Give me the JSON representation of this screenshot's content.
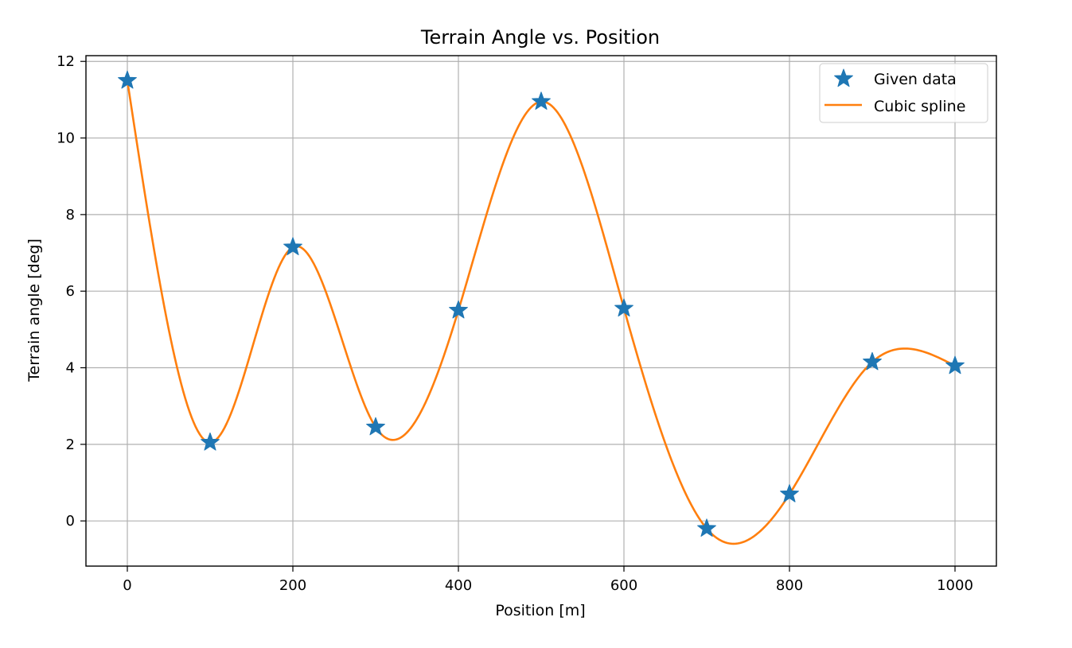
{
  "chart_data": {
    "type": "line",
    "title": "Terrain Angle vs. Position",
    "xlabel": "Position [m]",
    "ylabel": "Terrain angle [deg]",
    "xlim": [
      -50,
      1050
    ],
    "ylim": [
      -1.18,
      12.15
    ],
    "xticks": [
      0,
      200,
      400,
      600,
      800,
      1000
    ],
    "yticks": [
      0,
      2,
      4,
      6,
      8,
      10,
      12
    ],
    "grid": true,
    "legend_position": "upper right",
    "series": [
      {
        "name": "Given data",
        "style": "markers",
        "marker": "star",
        "color": "#1f77b4",
        "x": [
          0,
          100,
          200,
          300,
          400,
          500,
          600,
          700,
          800,
          900,
          1000
        ],
        "y": [
          11.5,
          2.05,
          7.15,
          2.45,
          5.5,
          10.95,
          5.55,
          -0.2,
          0.7,
          4.15,
          4.05
        ]
      },
      {
        "name": "Cubic spline",
        "style": "line",
        "color": "#ff7f0e",
        "x": [
          0,
          100,
          200,
          300,
          400,
          500,
          600,
          700,
          800,
          900,
          1000
        ],
        "y": [
          11.5,
          2.05,
          7.15,
          2.45,
          5.5,
          10.95,
          5.55,
          -0.2,
          0.7,
          4.15,
          4.05
        ]
      }
    ]
  }
}
